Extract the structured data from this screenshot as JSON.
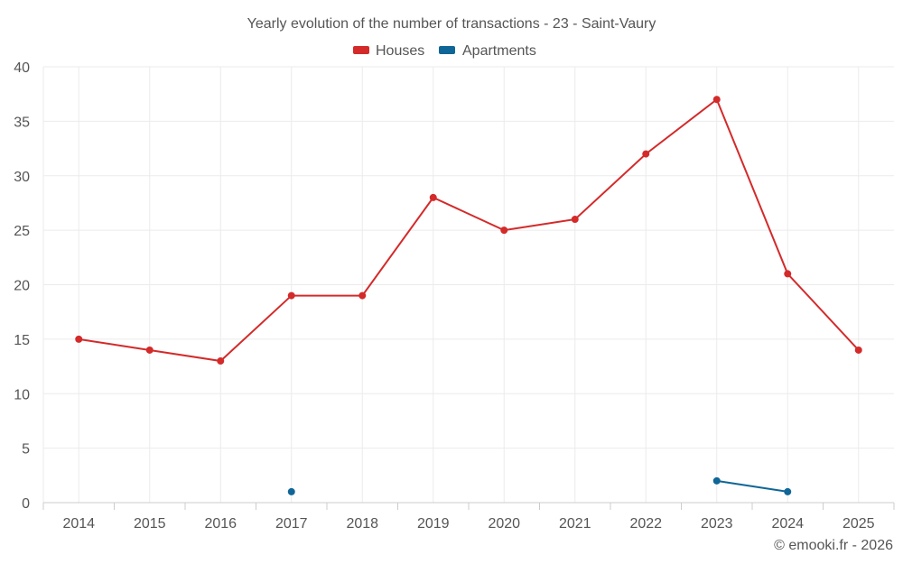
{
  "chart_data": {
    "type": "line",
    "title": "Yearly evolution of the number of transactions - 23 - Saint-Vaury",
    "categories": [
      "2014",
      "2015",
      "2016",
      "2017",
      "2018",
      "2019",
      "2020",
      "2021",
      "2022",
      "2023",
      "2024",
      "2025"
    ],
    "yticks": [
      "0",
      "5",
      "10",
      "15",
      "20",
      "25",
      "30",
      "35",
      "40"
    ],
    "ylim": [
      0,
      40
    ],
    "grid": true,
    "legend_position": "top",
    "series": [
      {
        "name": "Houses",
        "color": "#d42a2a",
        "values": [
          15,
          14,
          13,
          19,
          19,
          28,
          25,
          26,
          32,
          37,
          21,
          14
        ]
      },
      {
        "name": "Apartments",
        "color": "#0f6697",
        "values": [
          null,
          null,
          null,
          1,
          null,
          null,
          null,
          null,
          null,
          2,
          1,
          null
        ]
      }
    ],
    "credit": "© emooki.fr - 2026"
  }
}
